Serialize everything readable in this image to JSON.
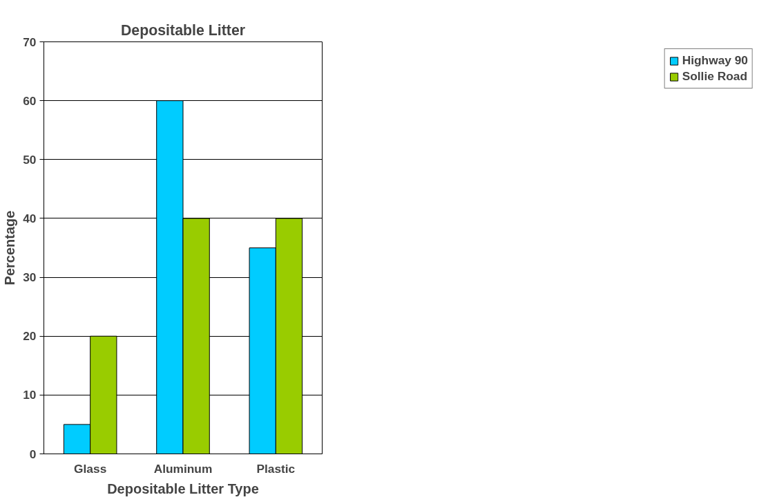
{
  "chart_data": {
    "type": "bar",
    "title": "Depositable Litter",
    "xlabel": "Depositable Litter Type",
    "ylabel": "Percentage",
    "categories": [
      "Glass",
      "Aluminum",
      "Plastic"
    ],
    "series": [
      {
        "name": "Highway 90",
        "color": "#00ccff",
        "values": [
          5,
          60,
          35
        ]
      },
      {
        "name": "Sollie Road",
        "color": "#99cc00",
        "values": [
          20,
          40,
          40
        ]
      }
    ],
    "ylim": [
      0,
      70
    ],
    "yticks": [
      0,
      10,
      20,
      30,
      40,
      50,
      60,
      70
    ],
    "grid": "y",
    "legend": "right"
  }
}
